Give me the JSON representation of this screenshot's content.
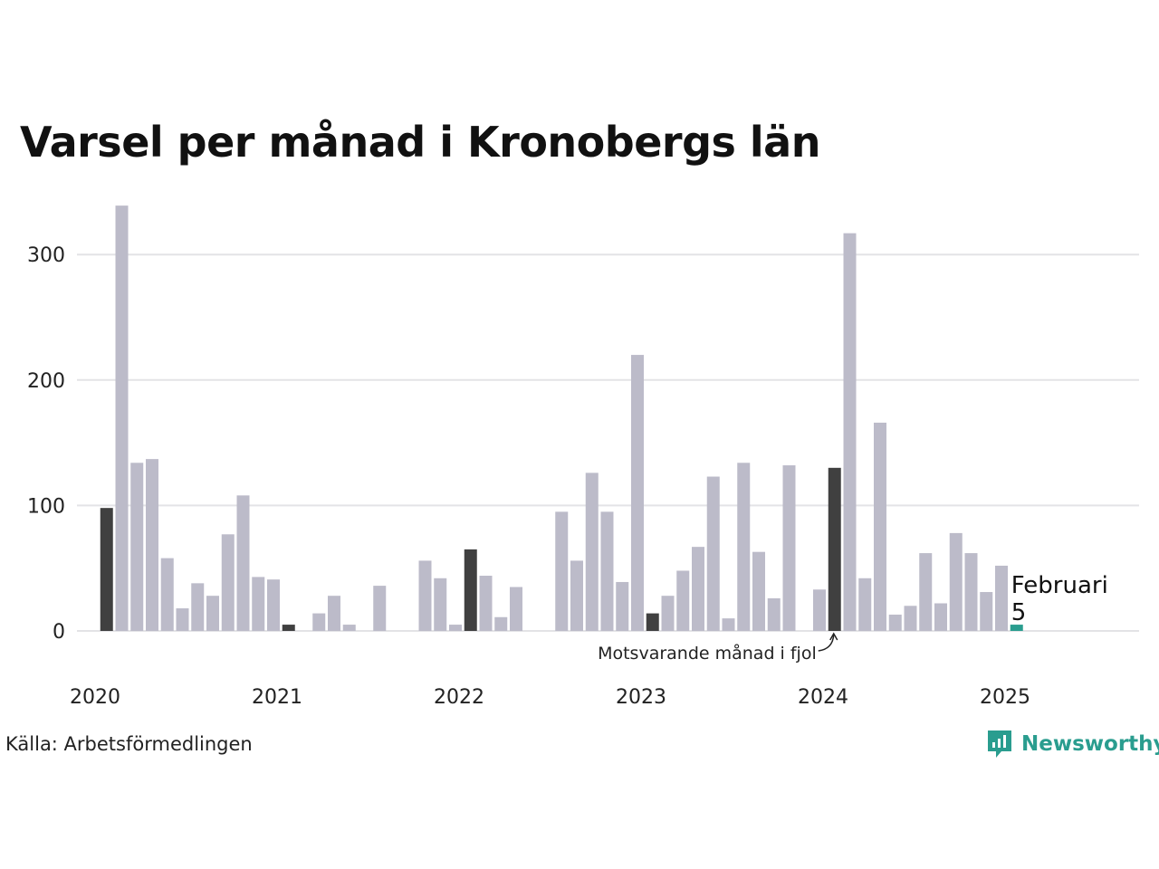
{
  "chart_data": {
    "type": "bar",
    "title": "Varsel per månad i Kronobergs län",
    "xlabel": "",
    "ylabel": "",
    "ylim": [
      0,
      340
    ],
    "yticks": [
      0,
      100,
      200,
      300
    ],
    "xtick_labels": [
      "2020",
      "2021",
      "2022",
      "2023",
      "2024",
      "2025"
    ],
    "grid": true,
    "months": [
      "2020-01",
      "2020-02",
      "2020-03",
      "2020-04",
      "2020-05",
      "2020-06",
      "2020-07",
      "2020-08",
      "2020-09",
      "2020-10",
      "2020-11",
      "2020-12",
      "2021-01",
      "2021-02",
      "2021-03",
      "2021-04",
      "2021-05",
      "2021-06",
      "2021-07",
      "2021-08",
      "2021-09",
      "2021-10",
      "2021-11",
      "2021-12",
      "2022-01",
      "2022-02",
      "2022-03",
      "2022-04",
      "2022-05",
      "2022-06",
      "2022-07",
      "2022-08",
      "2022-09",
      "2022-10",
      "2022-11",
      "2022-12",
      "2023-01",
      "2023-02",
      "2023-03",
      "2023-04",
      "2023-05",
      "2023-06",
      "2023-07",
      "2023-08",
      "2023-09",
      "2023-10",
      "2023-11",
      "2023-12",
      "2024-01",
      "2024-02",
      "2024-03",
      "2024-04",
      "2024-05",
      "2024-06",
      "2024-07",
      "2024-08",
      "2024-09",
      "2024-10",
      "2024-11",
      "2024-12",
      "2025-01",
      "2025-02"
    ],
    "values": [
      0,
      98,
      339,
      134,
      137,
      58,
      18,
      38,
      28,
      77,
      108,
      43,
      41,
      5,
      0,
      14,
      28,
      5,
      0,
      36,
      0,
      0,
      56,
      42,
      5,
      65,
      44,
      11,
      35,
      0,
      0,
      95,
      56,
      126,
      95,
      39,
      220,
      14,
      28,
      48,
      67,
      123,
      10,
      134,
      63,
      26,
      132,
      0,
      33,
      130,
      317,
      42,
      166,
      13,
      20,
      62,
      22,
      78,
      62,
      31,
      52,
      5
    ],
    "highlight_previous_year": [
      "2020-02",
      "2021-02",
      "2022-02",
      "2023-02",
      "2024-02"
    ],
    "current_month": "2025-02",
    "annotations": {
      "current_label": "Februari",
      "current_value": "5",
      "previous_year_label": "Motsvarande månad i fjol"
    },
    "colors": {
      "regular": "#bcbbc9",
      "previous_year": "#404040",
      "current": "#2a9d8f",
      "grid": "#e3e3e6",
      "text": "#222222"
    }
  },
  "footer": {
    "source": "Källa: Arbetsförmedlingen",
    "brand": "Newsworthy"
  }
}
